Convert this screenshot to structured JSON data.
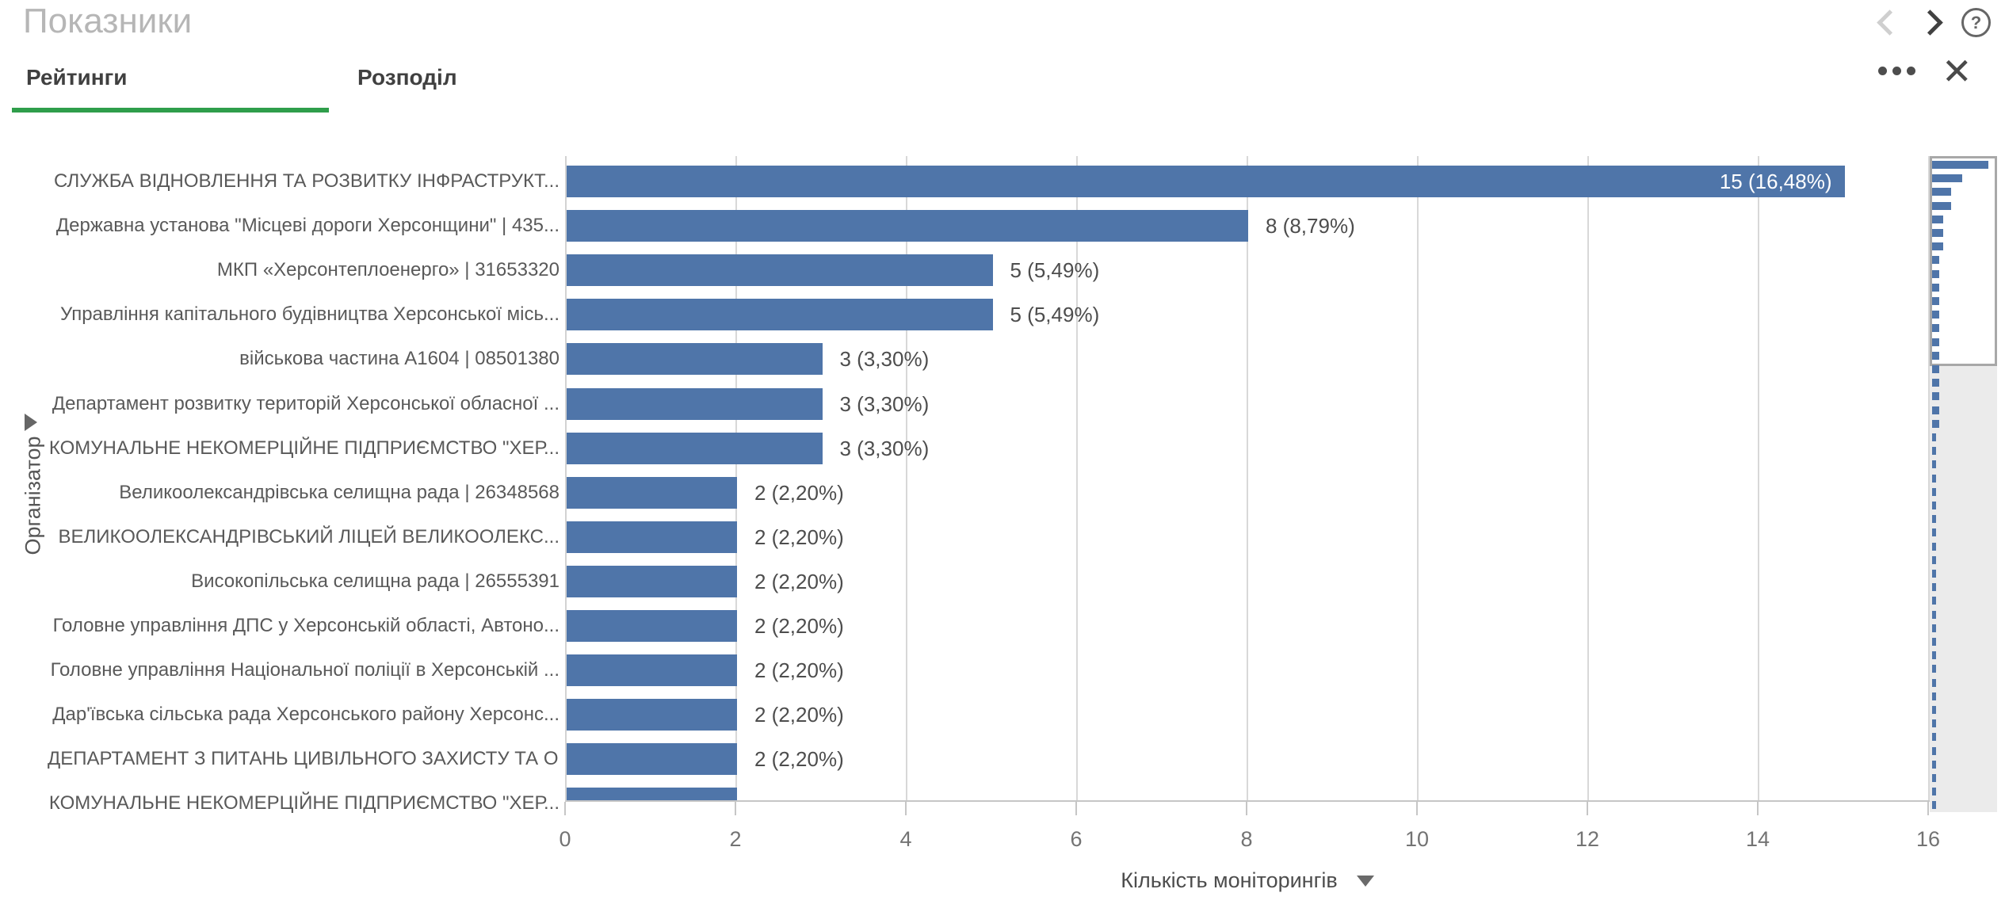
{
  "header": {
    "title": "Показники",
    "help_icon": "?"
  },
  "tabs": [
    {
      "label": "Рейтинги",
      "active": true
    },
    {
      "label": "Розподіл",
      "active": false
    }
  ],
  "toolbar": {
    "more_icon": "more-menu",
    "close_icon": "✕"
  },
  "chart_data": {
    "type": "bar",
    "orientation": "horizontal",
    "title": "",
    "dimension_label": "Організатор",
    "xlabel": "Кількість моніторингів",
    "xlim": [
      0,
      16
    ],
    "x_ticks": [
      0,
      2,
      4,
      6,
      8,
      10,
      12,
      14,
      16
    ],
    "grid": true,
    "bar_color": "#4f75a9",
    "categories": [
      "СЛУЖБА ВІДНОВЛЕННЯ ТА РОЗВИТКУ ІНФРАСТРУКТ...",
      "Державна установа \"Місцеві дороги Херсонщини\" | 435...",
      "МКП «Херсонтеплоенерго» | 31653320",
      "Управління капітального будівництва Херсонської місь...",
      "військова частина А1604 | 08501380",
      "Департамент розвитку територій Херсонської обласної ...",
      "КОМУНАЛЬНЕ НЕКОМЕРЦІЙНЕ ПІДПРИЄМСТВО \"ХЕР...",
      "Великоолександрівська селищна рада | 26348568",
      "ВЕЛИКООЛЕКСАНДРІВСЬКИЙ ЛІЦЕЙ ВЕЛИКООЛЕКС...",
      "Високопільська селищна рада | 26555391",
      "Головне управління ДПС у Херсонській області, Автоно...",
      "Головне управління Національної поліції в Херсонській ...",
      "Дар'ївська сільська рада Херсонського району Херсонс...",
      "ДЕПАРТАМЕНТ З ПИТАНЬ ЦИВІЛЬНОГО ЗАХИСТУ ТА О...",
      "КОМУНАЛЬНЕ НЕКОМЕРЦІЙНЕ ПІДПРИЄМСТВО \"ХЕР..."
    ],
    "values": [
      15,
      8,
      5,
      5,
      3,
      3,
      3,
      2,
      2,
      2,
      2,
      2,
      2,
      2,
      2
    ],
    "value_labels": [
      "15 (16,48%)",
      "8 (8,79%)",
      "5 (5,49%)",
      "5 (5,49%)",
      "3 (3,30%)",
      "3 (3,30%)",
      "3 (3,30%)",
      "2 (2,20%)",
      "2 (2,20%)",
      "2 (2,20%)",
      "2 (2,20%)",
      "2 (2,20%)",
      "2 (2,20%)",
      "2 (2,20%)",
      ""
    ],
    "value_label_inside": [
      true,
      false,
      false,
      false,
      false,
      false,
      false,
      false,
      false,
      false,
      false,
      false,
      false,
      false,
      false
    ],
    "overview_values": [
      15,
      8,
      5,
      5,
      3,
      3,
      3,
      2,
      2,
      2,
      2,
      2,
      2,
      2,
      2,
      2,
      2,
      2,
      2,
      2,
      1,
      1,
      1,
      1,
      1,
      1,
      1,
      1,
      1,
      1,
      1,
      1,
      1,
      1,
      1,
      1,
      1,
      1,
      1,
      1,
      1,
      1,
      1,
      1,
      1,
      1,
      1,
      1
    ]
  }
}
